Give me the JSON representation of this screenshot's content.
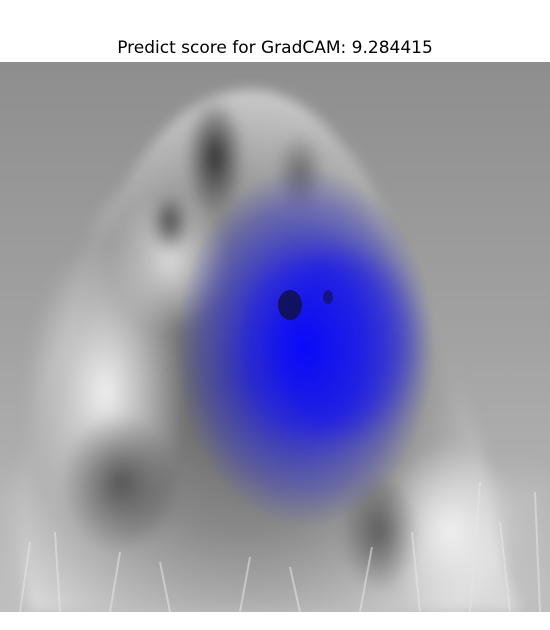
{
  "figure": {
    "title": "Predict score for GradCAM: 9.284415"
  },
  "image": {
    "subject": "grayscale photo of a fluffy dog sitting in grass",
    "overlay": "gradcam-heatmap",
    "overlay_color": "#1010ff"
  }
}
